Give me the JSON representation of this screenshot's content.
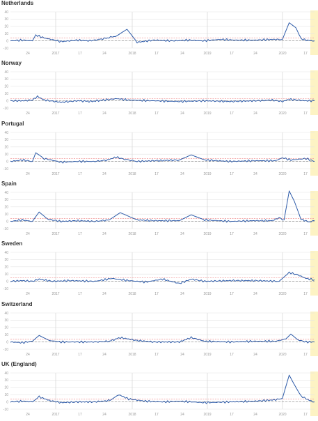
{
  "colors": {
    "line": "#2c5aa8",
    "grid": "#e3e3e3",
    "baseline": "#9a9a9a",
    "threshold": "#f2a3a3",
    "highlight": "#fdf3c4",
    "year_marker": "#cfcfcf"
  },
  "chart_data": [
    {
      "type": "line",
      "title": "Netherlands",
      "ylim": [
        -10,
        40
      ],
      "yticks": [
        "40",
        "30",
        "20",
        "10",
        "0",
        "-10"
      ],
      "xticks": [
        "24",
        "2017",
        "17",
        "24",
        "2018",
        "17",
        "24",
        "2019",
        "17",
        "24",
        "2020",
        "17"
      ],
      "threshold": 4,
      "series": [
        {
          "x": [
            0,
            14,
            26,
            30,
            40,
            60,
            80,
            92,
            100,
            115,
            126,
            138,
            150,
            170,
            192,
            210,
            228,
            248,
            268,
            290,
            310,
            322,
            330,
            338,
            344,
            350,
            360
          ],
          "y": [
            0,
            1,
            0,
            8,
            4,
            -1,
            1,
            0,
            1,
            4,
            7,
            16,
            -2,
            1,
            0,
            1,
            0,
            2,
            1,
            1,
            2,
            2,
            25,
            18,
            3,
            1,
            0
          ]
        }
      ]
    },
    {
      "type": "line",
      "title": "Norway",
      "ylim": [
        -10,
        40
      ],
      "yticks": [
        "40",
        "30",
        "20",
        "10",
        "0",
        "-10"
      ],
      "xticks": [
        "24",
        "2017",
        "17",
        "24",
        "2018",
        "17",
        "24",
        "2019",
        "17",
        "24",
        "2020",
        "17"
      ],
      "threshold": 3,
      "series": [
        {
          "x": [
            0,
            14,
            26,
            32,
            40,
            60,
            80,
            95,
            110,
            126,
            140,
            170,
            200,
            230,
            260,
            290,
            310,
            322,
            330,
            340,
            350,
            360
          ],
          "y": [
            0,
            0,
            1,
            6,
            1,
            -2,
            0,
            -1,
            1,
            3,
            1,
            0,
            -1,
            0,
            -1,
            0,
            1,
            -1,
            2,
            1,
            0,
            0
          ]
        }
      ]
    },
    {
      "type": "line",
      "title": "Portugal",
      "ylim": [
        -10,
        40
      ],
      "yticks": [
        "40",
        "30",
        "20",
        "10",
        "0",
        "-10"
      ],
      "xticks": [
        "24",
        "2017",
        "17",
        "24",
        "2018",
        "17",
        "24",
        "2019",
        "17",
        "24",
        "2020",
        "17"
      ],
      "threshold": 4,
      "series": [
        {
          "x": [
            0,
            14,
            26,
            30,
            40,
            60,
            80,
            100,
            115,
            125,
            135,
            150,
            170,
            200,
            214,
            230,
            260,
            290,
            314,
            322,
            332,
            350,
            360
          ],
          "y": [
            0,
            2,
            0,
            12,
            4,
            -1,
            0,
            0,
            2,
            6,
            3,
            0,
            1,
            2,
            9,
            2,
            0,
            1,
            1,
            5,
            2,
            4,
            0
          ]
        }
      ]
    },
    {
      "type": "line",
      "title": "Spain",
      "ylim": [
        -10,
        40
      ],
      "yticks": [
        "40",
        "30",
        "20",
        "10",
        "0",
        "-10"
      ],
      "xticks": [
        "24",
        "2017",
        "17",
        "24",
        "2018",
        "17",
        "24",
        "2019",
        "17",
        "24",
        "2020",
        "17"
      ],
      "threshold": 4,
      "series": [
        {
          "x": [
            0,
            14,
            26,
            34,
            44,
            60,
            80,
            100,
            117,
            130,
            150,
            170,
            200,
            214,
            230,
            260,
            290,
            310,
            318,
            324,
            330,
            336,
            344,
            354,
            360
          ],
          "y": [
            0,
            2,
            0,
            13,
            3,
            0,
            1,
            0,
            2,
            12,
            2,
            1,
            1,
            9,
            2,
            0,
            1,
            1,
            5,
            2,
            42,
            28,
            3,
            -1,
            1
          ]
        }
      ]
    },
    {
      "type": "line",
      "title": "Sweden",
      "ylim": [
        -10,
        40
      ],
      "yticks": [
        "40",
        "30",
        "20",
        "10",
        "0",
        "-10"
      ],
      "xticks": [
        "24",
        "2017",
        "17",
        "24",
        "2018",
        "17",
        "24",
        "2019",
        "17",
        "24",
        "2020",
        "17"
      ],
      "threshold": 5,
      "series": [
        {
          "x": [
            0,
            14,
            26,
            34,
            50,
            70,
            100,
            120,
            140,
            160,
            180,
            200,
            214,
            230,
            260,
            290,
            318,
            330,
            340,
            350,
            360
          ],
          "y": [
            0,
            1,
            0,
            3,
            0,
            1,
            0,
            4,
            1,
            -1,
            3,
            -3,
            3,
            0,
            1,
            1,
            0,
            12,
            9,
            4,
            2
          ]
        }
      ]
    },
    {
      "type": "line",
      "title": "Switzerland",
      "ylim": [
        -10,
        40
      ],
      "yticks": [
        "40",
        "30",
        "20",
        "10",
        "0",
        "-10"
      ],
      "xticks": [
        "24",
        "2017",
        "17",
        "24",
        "2018",
        "17",
        "24",
        "2019",
        "17",
        "24",
        "2020",
        "17"
      ],
      "threshold": 4,
      "series": [
        {
          "x": [
            0,
            14,
            26,
            34,
            46,
            60,
            80,
            100,
            117,
            130,
            150,
            170,
            200,
            214,
            230,
            260,
            290,
            314,
            326,
            332,
            340,
            350,
            360
          ],
          "y": [
            0,
            -1,
            1,
            9,
            2,
            0,
            0,
            0,
            1,
            6,
            2,
            0,
            0,
            6,
            1,
            0,
            1,
            1,
            4,
            11,
            3,
            0,
            0
          ]
        }
      ]
    },
    {
      "type": "line",
      "title": "UK (England)",
      "ylim": [
        -10,
        40
      ],
      "yticks": [
        "40",
        "30",
        "20",
        "10",
        "0",
        "-10"
      ],
      "xticks": [
        "24",
        "2017",
        "17",
        "24",
        "2018",
        "17",
        "24",
        "2019",
        "17",
        "24",
        "2020",
        "17"
      ],
      "threshold": 4,
      "series": [
        {
          "x": [
            0,
            14,
            26,
            34,
            46,
            60,
            80,
            100,
            118,
            128,
            140,
            160,
            180,
            200,
            230,
            260,
            290,
            314,
            322,
            330,
            336,
            344,
            354,
            360
          ],
          "y": [
            0,
            1,
            0,
            7,
            2,
            -1,
            0,
            0,
            2,
            10,
            4,
            1,
            0,
            1,
            -1,
            0,
            1,
            3,
            5,
            37,
            24,
            8,
            2,
            0
          ]
        }
      ]
    }
  ]
}
